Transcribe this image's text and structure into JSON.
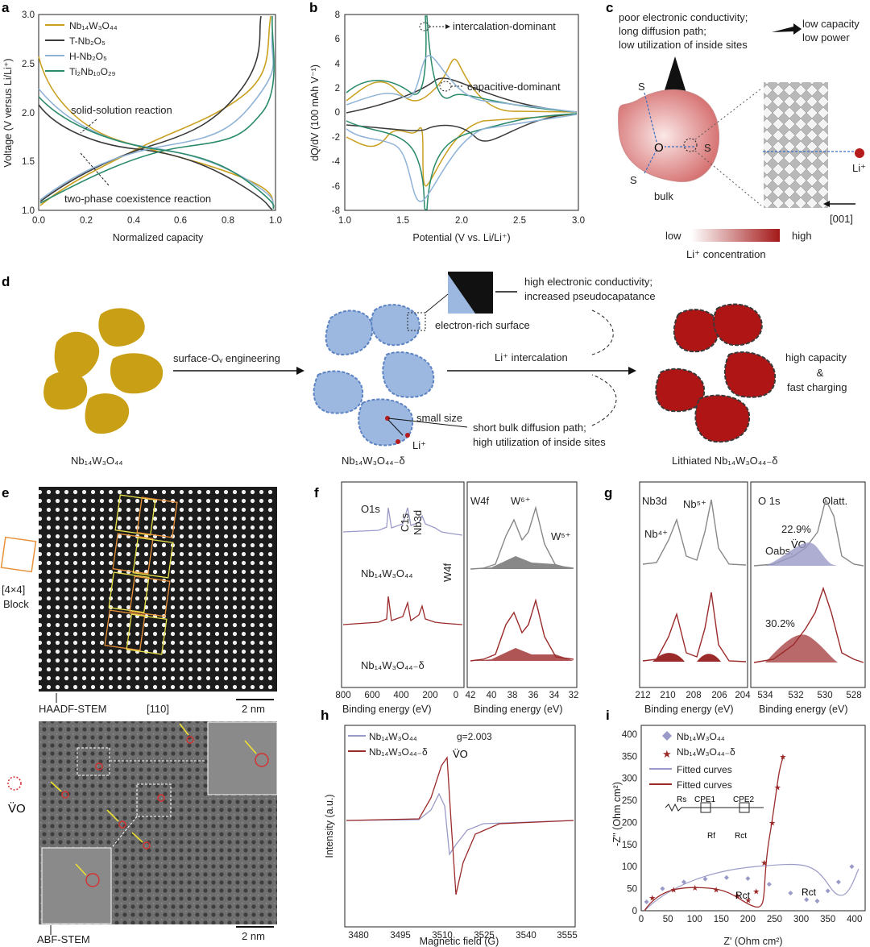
{
  "panels": {
    "a": "a",
    "b": "b",
    "c": "c",
    "d": "d",
    "e": "e",
    "f": "f",
    "g": "g",
    "h": "h",
    "i": "i"
  },
  "panel_a": {
    "ylabel": "Voltage (V versus Li/Li⁺)",
    "xlabel": "Normalized capacity",
    "yticks": [
      "1.0",
      "1.5",
      "2.0",
      "2.5",
      "3.0"
    ],
    "xticks": [
      "0.0",
      "0.2",
      "0.4",
      "0.6",
      "0.8",
      "1.0"
    ],
    "legend": [
      {
        "label": "Nb₁₄W₃O₄₄",
        "color": "#c9a020"
      },
      {
        "label": "T-Nb₂O₅",
        "color": "#3a3a3a"
      },
      {
        "label": "H-Nb₂O₅",
        "color": "#8fb3d6"
      },
      {
        "label": "Ti₂Nb₁₀O₂₉",
        "color": "#2a8a6a"
      }
    ],
    "annotation_1": "solid-solution reaction",
    "annotation_2": "two-phase coexistence reaction"
  },
  "panel_b": {
    "ylabel": "dQ/dV (100 mAh V⁻¹)",
    "xlabel": "Potential (V vs. Li/Li⁺)",
    "yticks": [
      "-8",
      "-6",
      "-4",
      "-2",
      "0",
      "2",
      "4",
      "6",
      "8"
    ],
    "xticks": [
      "1.0",
      "1.5",
      "2.0",
      "2.5",
      "3.0"
    ],
    "annotation_1": "intercalation-dominant",
    "annotation_2": "capacitive-dominant"
  },
  "panel_c": {
    "text_problem_1": "poor electronic conductivity;",
    "text_problem_2": "long diffusion path;",
    "text_problem_3": "low utilization of inside sites",
    "result_1": "low capacity",
    "result_2": "low power",
    "center": "O",
    "surface": "S",
    "bulk": "bulk",
    "li": "Li⁺",
    "direction": "[001]",
    "scale_low": "low",
    "scale_high": "high",
    "scale_label": "Li⁺ concentration"
  },
  "panel_d": {
    "left_label": "Nb₁₄W₃O₄₄",
    "arrow1": "surface-Oᵥ engineering",
    "mid_label": "Nb₁₄W₃O₄₄₋δ",
    "surface_note": "electron-rich surface",
    "benefit_1": "high electronic conductivity;",
    "benefit_2": "increased pseudocapatance",
    "intercalation": "Li⁺ intercalation",
    "small_size": "small size",
    "li": "Li⁺",
    "benefit_3": "short bulk diffusion path;",
    "benefit_4": "high utilization of inside sites",
    "right_label": "Lithiated Nb₁₄W₃O₄₄₋δ",
    "result_1": "high capacity",
    "result_2": "&",
    "result_3": "fast charging"
  },
  "panel_e": {
    "block_label_1": "[4×4]",
    "block_label_2": "Block",
    "haadf": "HAADF-STEM",
    "zone": "[110]",
    "scale": "2 nm",
    "vac_label": "V̈O",
    "abf": "ABF-STEM",
    "scale2": "2 nm"
  },
  "panel_f": {
    "peaks": [
      "O1s",
      "C1s",
      "Nb3d",
      "W4f"
    ],
    "sample_1": "Nb₁₄W₃O₄₄",
    "sample_2": "Nb₁₄W₃O₄₄₋δ",
    "xticks_1": [
      "800",
      "600",
      "400",
      "200",
      "0"
    ],
    "xticks_2": [
      "42",
      "40",
      "38",
      "36",
      "34",
      "32"
    ],
    "xlabel": "Binding energy (eV)",
    "w4f": "W4f",
    "w6": "W⁶⁺",
    "w5": "W⁵⁺"
  },
  "panel_g": {
    "nb3d": "Nb3d",
    "nb5": "Nb⁵⁺",
    "nb4": "Nb⁴⁺",
    "o1s": "O 1s",
    "olatt": "Olatt.",
    "oabs": "Oabs.",
    "vo": "V̈O",
    "pct_1": "22.9%",
    "pct_2": "30.2%",
    "xticks_1": [
      "212",
      "210",
      "208",
      "206",
      "204"
    ],
    "xticks_2": [
      "534",
      "532",
      "530",
      "528"
    ],
    "xlabel": "Binding energy (eV)"
  },
  "panel_h": {
    "ylabel": "Intensity (a.u.)",
    "xlabel": "Magnetic field (G)",
    "xticks": [
      "3480",
      "3495",
      "3510",
      "3525",
      "3540",
      "3555"
    ],
    "legend": [
      {
        "label": "Nb₁₄W₃O₄₄",
        "color": "#9a9ac8"
      },
      {
        "label": "Nb₁₄W₃O₄₄₋δ",
        "color": "#9b2a2a"
      }
    ],
    "g_value": "g=2.003",
    "vo": "V̈O"
  },
  "panel_i": {
    "ylabel": "-Z'' (Ohm cm²)",
    "xlabel": "Z' (Ohm cm²)",
    "yticks": [
      "0",
      "50",
      "100",
      "150",
      "200",
      "250",
      "300",
      "350",
      "400"
    ],
    "xticks": [
      "0",
      "50",
      "100",
      "150",
      "200",
      "250",
      "300",
      "350",
      "400"
    ],
    "legend": [
      "Nb₁₄W₃O₄₄",
      "Nb₁₄W₃O₄₄₋δ",
      "Fitted curves",
      "Fitted curves"
    ],
    "circuit": [
      "Rs",
      "CPE1",
      "CPE2",
      "Rf",
      "Rct"
    ],
    "rct": "Rct"
  },
  "colors": {
    "gold": "#c9a020",
    "blue": "#9db8e0",
    "red": "#a81c1c",
    "dark": "#333333"
  }
}
